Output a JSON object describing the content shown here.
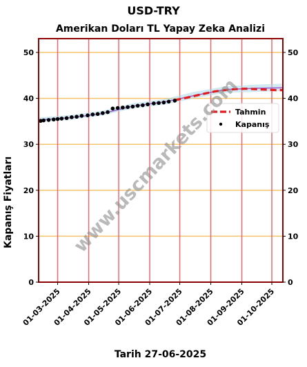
{
  "chart_data": {
    "type": "line",
    "title": "USD-TRY",
    "subtitle": "Amerikan Doları TL Yapay Zeka Analizi",
    "ylabel": "Kapanış Fiyatları",
    "xlabel": "Tarih 27-06-2025",
    "xlim": [
      "2025-02-10",
      "2025-10-12"
    ],
    "ylim": [
      0,
      53
    ],
    "yticks": [
      0,
      10,
      20,
      30,
      40,
      50
    ],
    "xticks": [
      "2025-03-01",
      "2025-04-01",
      "2025-05-01",
      "2025-06-01",
      "2025-07-01",
      "2025-08-01",
      "2025-09-01",
      "2025-10-01"
    ],
    "xtick_labels": [
      "01-03-2025",
      "01-04-2025",
      "01-05-2025",
      "01-06-2025",
      "01-07-2025",
      "01-08-2025",
      "01-09-2025",
      "01-10-2025"
    ],
    "grid": {
      "horizontal_color": "#f5c36b",
      "vertical_color": "#e8696d"
    },
    "legend_placement": "center-right",
    "watermark": "www.uscmarkets.com",
    "series": [
      {
        "name": "Kapanış",
        "style": "scatter",
        "color": "#000000",
        "points": [
          [
            "2025-02-12",
            35.1
          ],
          [
            "2025-02-15",
            35.2
          ],
          [
            "2025-02-20",
            35.3
          ],
          [
            "2025-02-25",
            35.4
          ],
          [
            "2025-03-01",
            35.5
          ],
          [
            "2025-03-05",
            35.6
          ],
          [
            "2025-03-10",
            35.7
          ],
          [
            "2025-03-15",
            35.9
          ],
          [
            "2025-03-20",
            36.0
          ],
          [
            "2025-03-25",
            36.2
          ],
          [
            "2025-03-31",
            36.3
          ],
          [
            "2025-04-05",
            36.5
          ],
          [
            "2025-04-10",
            36.6
          ],
          [
            "2025-04-15",
            36.8
          ],
          [
            "2025-04-20",
            37.0
          ],
          [
            "2025-04-25",
            37.8
          ],
          [
            "2025-04-30",
            37.9
          ],
          [
            "2025-05-05",
            38.0
          ],
          [
            "2025-05-10",
            38.1
          ],
          [
            "2025-05-15",
            38.2
          ],
          [
            "2025-05-20",
            38.4
          ],
          [
            "2025-05-25",
            38.5
          ],
          [
            "2025-05-30",
            38.7
          ],
          [
            "2025-06-05",
            38.9
          ],
          [
            "2025-06-10",
            39.0
          ],
          [
            "2025-06-15",
            39.1
          ],
          [
            "2025-06-20",
            39.3
          ],
          [
            "2025-06-26",
            39.5
          ]
        ]
      },
      {
        "name": "Tahmin",
        "style": "dashed-line",
        "color": "#e31a1c",
        "points": [
          [
            "2025-06-26",
            39.6
          ],
          [
            "2025-07-05",
            40.0
          ],
          [
            "2025-07-15",
            40.5
          ],
          [
            "2025-07-25",
            41.0
          ],
          [
            "2025-08-05",
            41.5
          ],
          [
            "2025-08-15",
            41.8
          ],
          [
            "2025-08-25",
            42.0
          ],
          [
            "2025-09-05",
            42.1
          ],
          [
            "2025-09-15",
            42.0
          ],
          [
            "2025-09-25",
            41.9
          ],
          [
            "2025-10-05",
            41.8
          ],
          [
            "2025-10-12",
            41.8
          ]
        ]
      },
      {
        "name": "",
        "style": "band",
        "color": "#add8e6",
        "points": [
          [
            "2025-02-10",
            34.8,
            35.8
          ],
          [
            "2025-03-15",
            35.4,
            36.4
          ],
          [
            "2025-04-15",
            36.3,
            37.3
          ],
          [
            "2025-05-15",
            37.8,
            38.9
          ],
          [
            "2025-06-15",
            38.6,
            39.8
          ],
          [
            "2025-07-15",
            40.0,
            41.4
          ],
          [
            "2025-08-15",
            41.2,
            42.6
          ],
          [
            "2025-09-15",
            41.4,
            43.0
          ],
          [
            "2025-10-12",
            41.6,
            43.2
          ]
        ]
      },
      {
        "name": "",
        "style": "line",
        "color": "#9b59d0",
        "points": [
          [
            "2025-02-10",
            35.3
          ],
          [
            "2025-03-15",
            35.8
          ],
          [
            "2025-04-15",
            36.7
          ],
          [
            "2025-05-15",
            38.3
          ],
          [
            "2025-06-15",
            39.2
          ],
          [
            "2025-07-15",
            40.6
          ],
          [
            "2025-08-15",
            41.9
          ],
          [
            "2025-09-15",
            42.2
          ],
          [
            "2025-10-12",
            42.3
          ]
        ]
      }
    ]
  }
}
